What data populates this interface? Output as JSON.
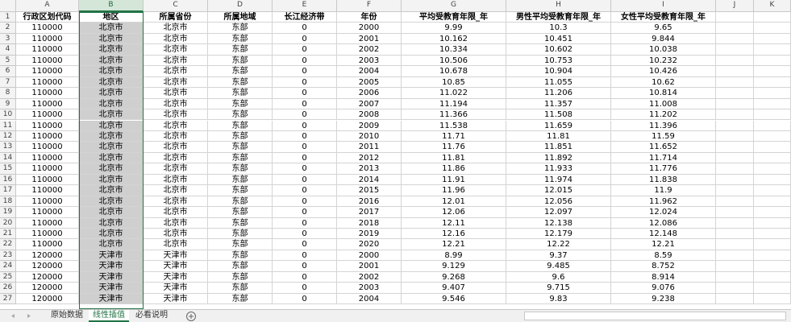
{
  "sheet": {
    "column_letters": [
      "A",
      "B",
      "C",
      "D",
      "E",
      "F",
      "G",
      "H",
      "I",
      "J",
      "K"
    ],
    "header_row": {
      "n": "1",
      "cells": [
        "行政区划代码",
        "地区",
        "所属省份",
        "所属地域",
        "长江经济带",
        "年份",
        "平均受教育年限_年",
        "男性平均受教育年限_年",
        "女性平均受教育年限_年"
      ]
    },
    "rows": [
      {
        "n": "2",
        "cells": [
          "110000",
          "北京市",
          "北京市",
          "东部",
          "0",
          "2000",
          "9.99",
          "10.3",
          "9.65"
        ]
      },
      {
        "n": "3",
        "cells": [
          "110000",
          "北京市",
          "北京市",
          "东部",
          "0",
          "2001",
          "10.162",
          "10.451",
          "9.844"
        ]
      },
      {
        "n": "4",
        "cells": [
          "110000",
          "北京市",
          "北京市",
          "东部",
          "0",
          "2002",
          "10.334",
          "10.602",
          "10.038"
        ]
      },
      {
        "n": "5",
        "cells": [
          "110000",
          "北京市",
          "北京市",
          "东部",
          "0",
          "2003",
          "10.506",
          "10.753",
          "10.232"
        ]
      },
      {
        "n": "6",
        "cells": [
          "110000",
          "北京市",
          "北京市",
          "东部",
          "0",
          "2004",
          "10.678",
          "10.904",
          "10.426"
        ]
      },
      {
        "n": "7",
        "cells": [
          "110000",
          "北京市",
          "北京市",
          "东部",
          "0",
          "2005",
          "10.85",
          "11.055",
          "10.62"
        ]
      },
      {
        "n": "8",
        "cells": [
          "110000",
          "北京市",
          "北京市",
          "东部",
          "0",
          "2006",
          "11.022",
          "11.206",
          "10.814"
        ]
      },
      {
        "n": "9",
        "cells": [
          "110000",
          "北京市",
          "北京市",
          "东部",
          "0",
          "2007",
          "11.194",
          "11.357",
          "11.008"
        ]
      },
      {
        "n": "10",
        "cells": [
          "110000",
          "北京市",
          "北京市",
          "东部",
          "0",
          "2008",
          "11.366",
          "11.508",
          "11.202"
        ]
      },
      {
        "n": "11",
        "cells": [
          "110000",
          "北京市",
          "北京市",
          "东部",
          "0",
          "2009",
          "11.538",
          "11.659",
          "11.396"
        ]
      },
      {
        "n": "12",
        "cells": [
          "110000",
          "北京市",
          "北京市",
          "东部",
          "0",
          "2010",
          "11.71",
          "11.81",
          "11.59"
        ]
      },
      {
        "n": "13",
        "cells": [
          "110000",
          "北京市",
          "北京市",
          "东部",
          "0",
          "2011",
          "11.76",
          "11.851",
          "11.652"
        ]
      },
      {
        "n": "14",
        "cells": [
          "110000",
          "北京市",
          "北京市",
          "东部",
          "0",
          "2012",
          "11.81",
          "11.892",
          "11.714"
        ]
      },
      {
        "n": "15",
        "cells": [
          "110000",
          "北京市",
          "北京市",
          "东部",
          "0",
          "2013",
          "11.86",
          "11.933",
          "11.776"
        ]
      },
      {
        "n": "16",
        "cells": [
          "110000",
          "北京市",
          "北京市",
          "东部",
          "0",
          "2014",
          "11.91",
          "11.974",
          "11.838"
        ]
      },
      {
        "n": "17",
        "cells": [
          "110000",
          "北京市",
          "北京市",
          "东部",
          "0",
          "2015",
          "11.96",
          "12.015",
          "11.9"
        ]
      },
      {
        "n": "18",
        "cells": [
          "110000",
          "北京市",
          "北京市",
          "东部",
          "0",
          "2016",
          "12.01",
          "12.056",
          "11.962"
        ]
      },
      {
        "n": "19",
        "cells": [
          "110000",
          "北京市",
          "北京市",
          "东部",
          "0",
          "2017",
          "12.06",
          "12.097",
          "12.024"
        ]
      },
      {
        "n": "20",
        "cells": [
          "110000",
          "北京市",
          "北京市",
          "东部",
          "0",
          "2018",
          "12.11",
          "12.138",
          "12.086"
        ]
      },
      {
        "n": "21",
        "cells": [
          "110000",
          "北京市",
          "北京市",
          "东部",
          "0",
          "2019",
          "12.16",
          "12.179",
          "12.148"
        ]
      },
      {
        "n": "22",
        "cells": [
          "110000",
          "北京市",
          "北京市",
          "东部",
          "0",
          "2020",
          "12.21",
          "12.22",
          "12.21"
        ]
      },
      {
        "n": "23",
        "cells": [
          "120000",
          "天津市",
          "天津市",
          "东部",
          "0",
          "2000",
          "8.99",
          "9.37",
          "8.59"
        ]
      },
      {
        "n": "24",
        "cells": [
          "120000",
          "天津市",
          "天津市",
          "东部",
          "0",
          "2001",
          "9.129",
          "9.485",
          "8.752"
        ]
      },
      {
        "n": "25",
        "cells": [
          "120000",
          "天津市",
          "天津市",
          "东部",
          "0",
          "2002",
          "9.268",
          "9.6",
          "8.914"
        ]
      },
      {
        "n": "26",
        "cells": [
          "120000",
          "天津市",
          "天津市",
          "东部",
          "0",
          "2003",
          "9.407",
          "9.715",
          "9.076"
        ]
      },
      {
        "n": "27",
        "cells": [
          "120000",
          "天津市",
          "天津市",
          "东部",
          "0",
          "2004",
          "9.546",
          "9.83",
          "9.238"
        ]
      }
    ],
    "tabs": [
      "原始数据",
      "线性插值",
      "必看说明"
    ]
  }
}
